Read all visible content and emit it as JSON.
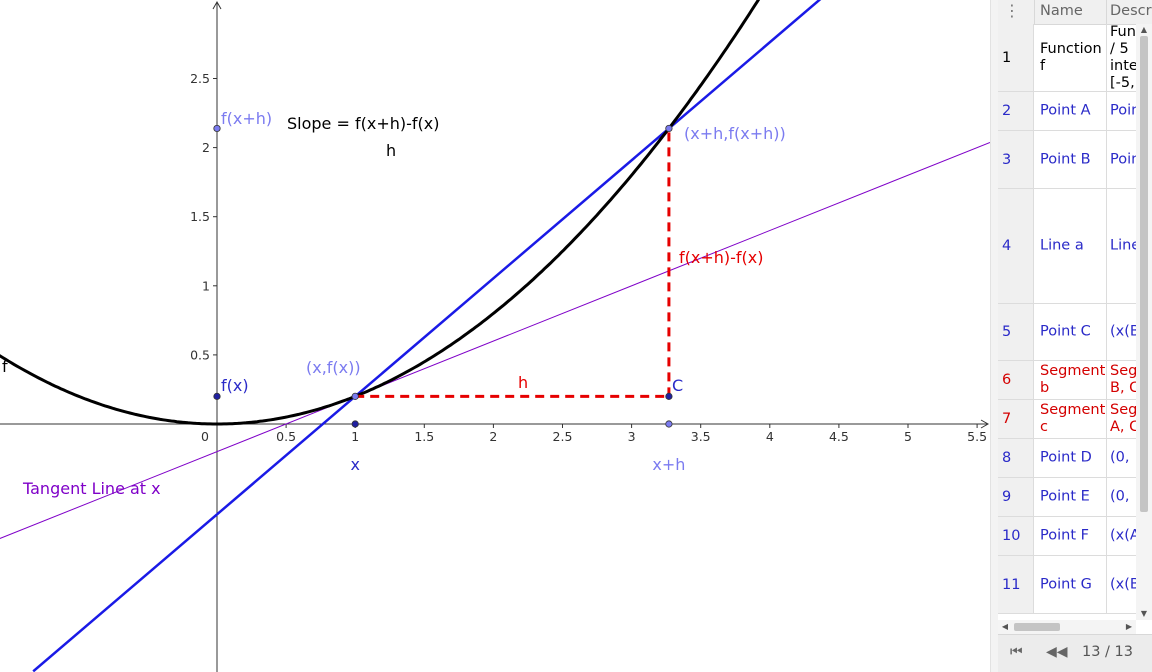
{
  "graphics": {
    "function_label": "f",
    "slope_label": "Slope = f(x+h)-f(x)",
    "slope_denominator": "h",
    "tangent_label": "Tangent Line at x",
    "point_labels": {
      "fx_axis": "f(x)",
      "fxh_axis": "f(x+h)",
      "x_point": "(x,f(x))",
      "xh_point": "(x+h,f(x+h))",
      "C": "C",
      "x_axis": "x",
      "xh_axis": "x+h",
      "h_segment": "h",
      "diff_segment": "f(x+h)-f(x)"
    },
    "x_ticks": [
      "0",
      "0.5",
      "1",
      "1.5",
      "2",
      "2.5",
      "3",
      "3.5",
      "4",
      "4.5",
      "5",
      "5.5"
    ],
    "y_ticks": [
      "0.5",
      "1",
      "1.5",
      "2",
      "2.5"
    ],
    "colors": {
      "curve": "#000000",
      "secant": "#1a1ae6",
      "tangent": "#7f00c8",
      "segments": "#e60000",
      "point_light": "#7b7bf0",
      "point_dark": "#2020a0"
    }
  },
  "algebra": {
    "menu_icon": "vertical-dots-icon",
    "menu_glyph": "⋮",
    "columns": {
      "name": "Name",
      "description": "Descr"
    },
    "rows": [
      {
        "num": "1",
        "name": "Function\nf",
        "desc": "Fun\n/ 5\ninte\n[-5,",
        "color": "#000000"
      },
      {
        "num": "2",
        "name": "Point A",
        "desc": "Poin",
        "color": "#2a2ac8"
      },
      {
        "num": "3",
        "name": "Point B",
        "desc": "Poin",
        "color": "#2a2ac8"
      },
      {
        "num": "4",
        "name": "Line a",
        "desc": "Line",
        "color": "#2a2ac8"
      },
      {
        "num": "5",
        "name": "Point C",
        "desc": "(x(B",
        "color": "#2a2ac8"
      },
      {
        "num": "6",
        "name": "Segment\nb",
        "desc": "Seg\nB, C",
        "color": "#d40000"
      },
      {
        "num": "7",
        "name": "Segment\nc",
        "desc": "Seg\nA, C",
        "color": "#d40000"
      },
      {
        "num": "8",
        "name": "Point D",
        "desc": "(0,",
        "color": "#2a2ac8"
      },
      {
        "num": "9",
        "name": "Point E",
        "desc": "(0,",
        "color": "#2a2ac8"
      },
      {
        "num": "10",
        "name": "Point F",
        "desc": "(x(A",
        "color": "#2a2ac8"
      },
      {
        "num": "11",
        "name": "Point G",
        "desc": "(x(B",
        "color": "#2a2ac8"
      }
    ],
    "scroll": {
      "up": "▲",
      "down": "▼",
      "left": "◀",
      "right": "▶"
    }
  },
  "navigation": {
    "first_glyph": "⏮",
    "prev_glyph": "◀◀",
    "step": "13 / 13"
  }
}
